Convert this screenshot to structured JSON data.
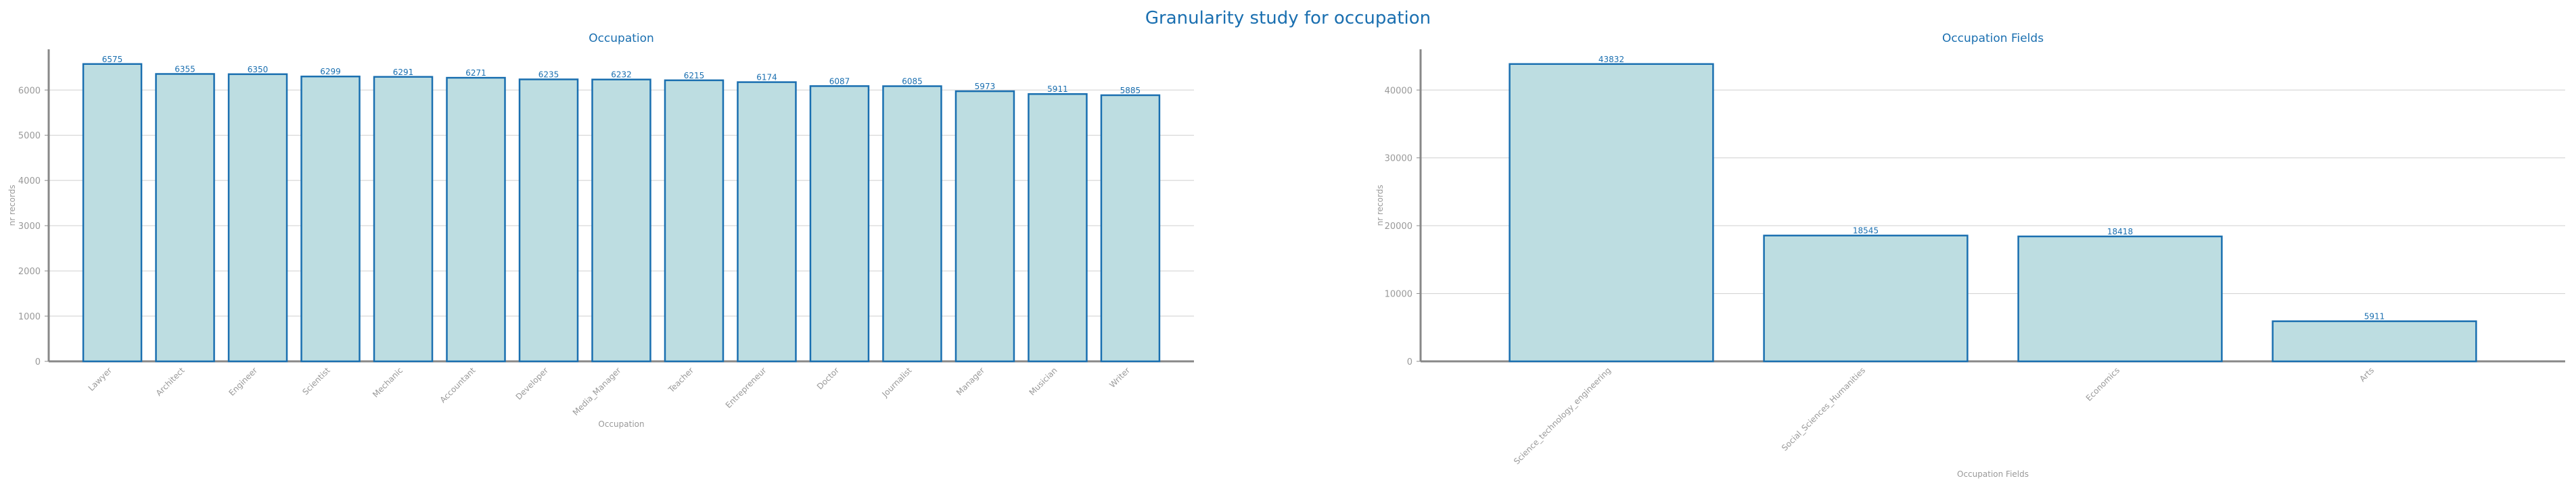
{
  "title": "Granularity study for occupation",
  "colors": {
    "bar_fill": "#bddde1",
    "bar_stroke": "#1a6fb0",
    "title": "#1a6fb0",
    "muted": "#999999",
    "grid": "#cfcfcf",
    "axis": "#888888"
  },
  "chart_data": [
    {
      "type": "bar",
      "title": "Occupation",
      "xlabel": "Occupation",
      "ylabel": "nr records",
      "categories": [
        "Lawyer",
        "Architect",
        "Engineer",
        "Scientist",
        "Mechanic",
        "Accountant",
        "Developer",
        "Media_Manager",
        "Teacher",
        "Entrepreneur",
        "Doctor",
        "Journalist",
        "Manager",
        "Musician",
        "Writer"
      ],
      "values": [
        6575,
        6355,
        6350,
        6299,
        6291,
        6271,
        6235,
        6232,
        6215,
        6174,
        6087,
        6085,
        5973,
        5911,
        5885
      ],
      "yticks": [
        0,
        1000,
        2000,
        3000,
        4000,
        5000,
        6000
      ],
      "ylim": [
        0,
        6900
      ],
      "grid": true
    },
    {
      "type": "bar",
      "title": "Occupation Fields",
      "xlabel": "Occupation Fields",
      "ylabel": "nr records",
      "categories": [
        "Science_technology_engineering",
        "Social_Sciences_Humanities",
        "Economics",
        "Arts"
      ],
      "values": [
        43832,
        18545,
        18418,
        5911
      ],
      "yticks": [
        0,
        10000,
        20000,
        30000,
        40000
      ],
      "ylim": [
        0,
        46000
      ],
      "grid": true
    }
  ]
}
